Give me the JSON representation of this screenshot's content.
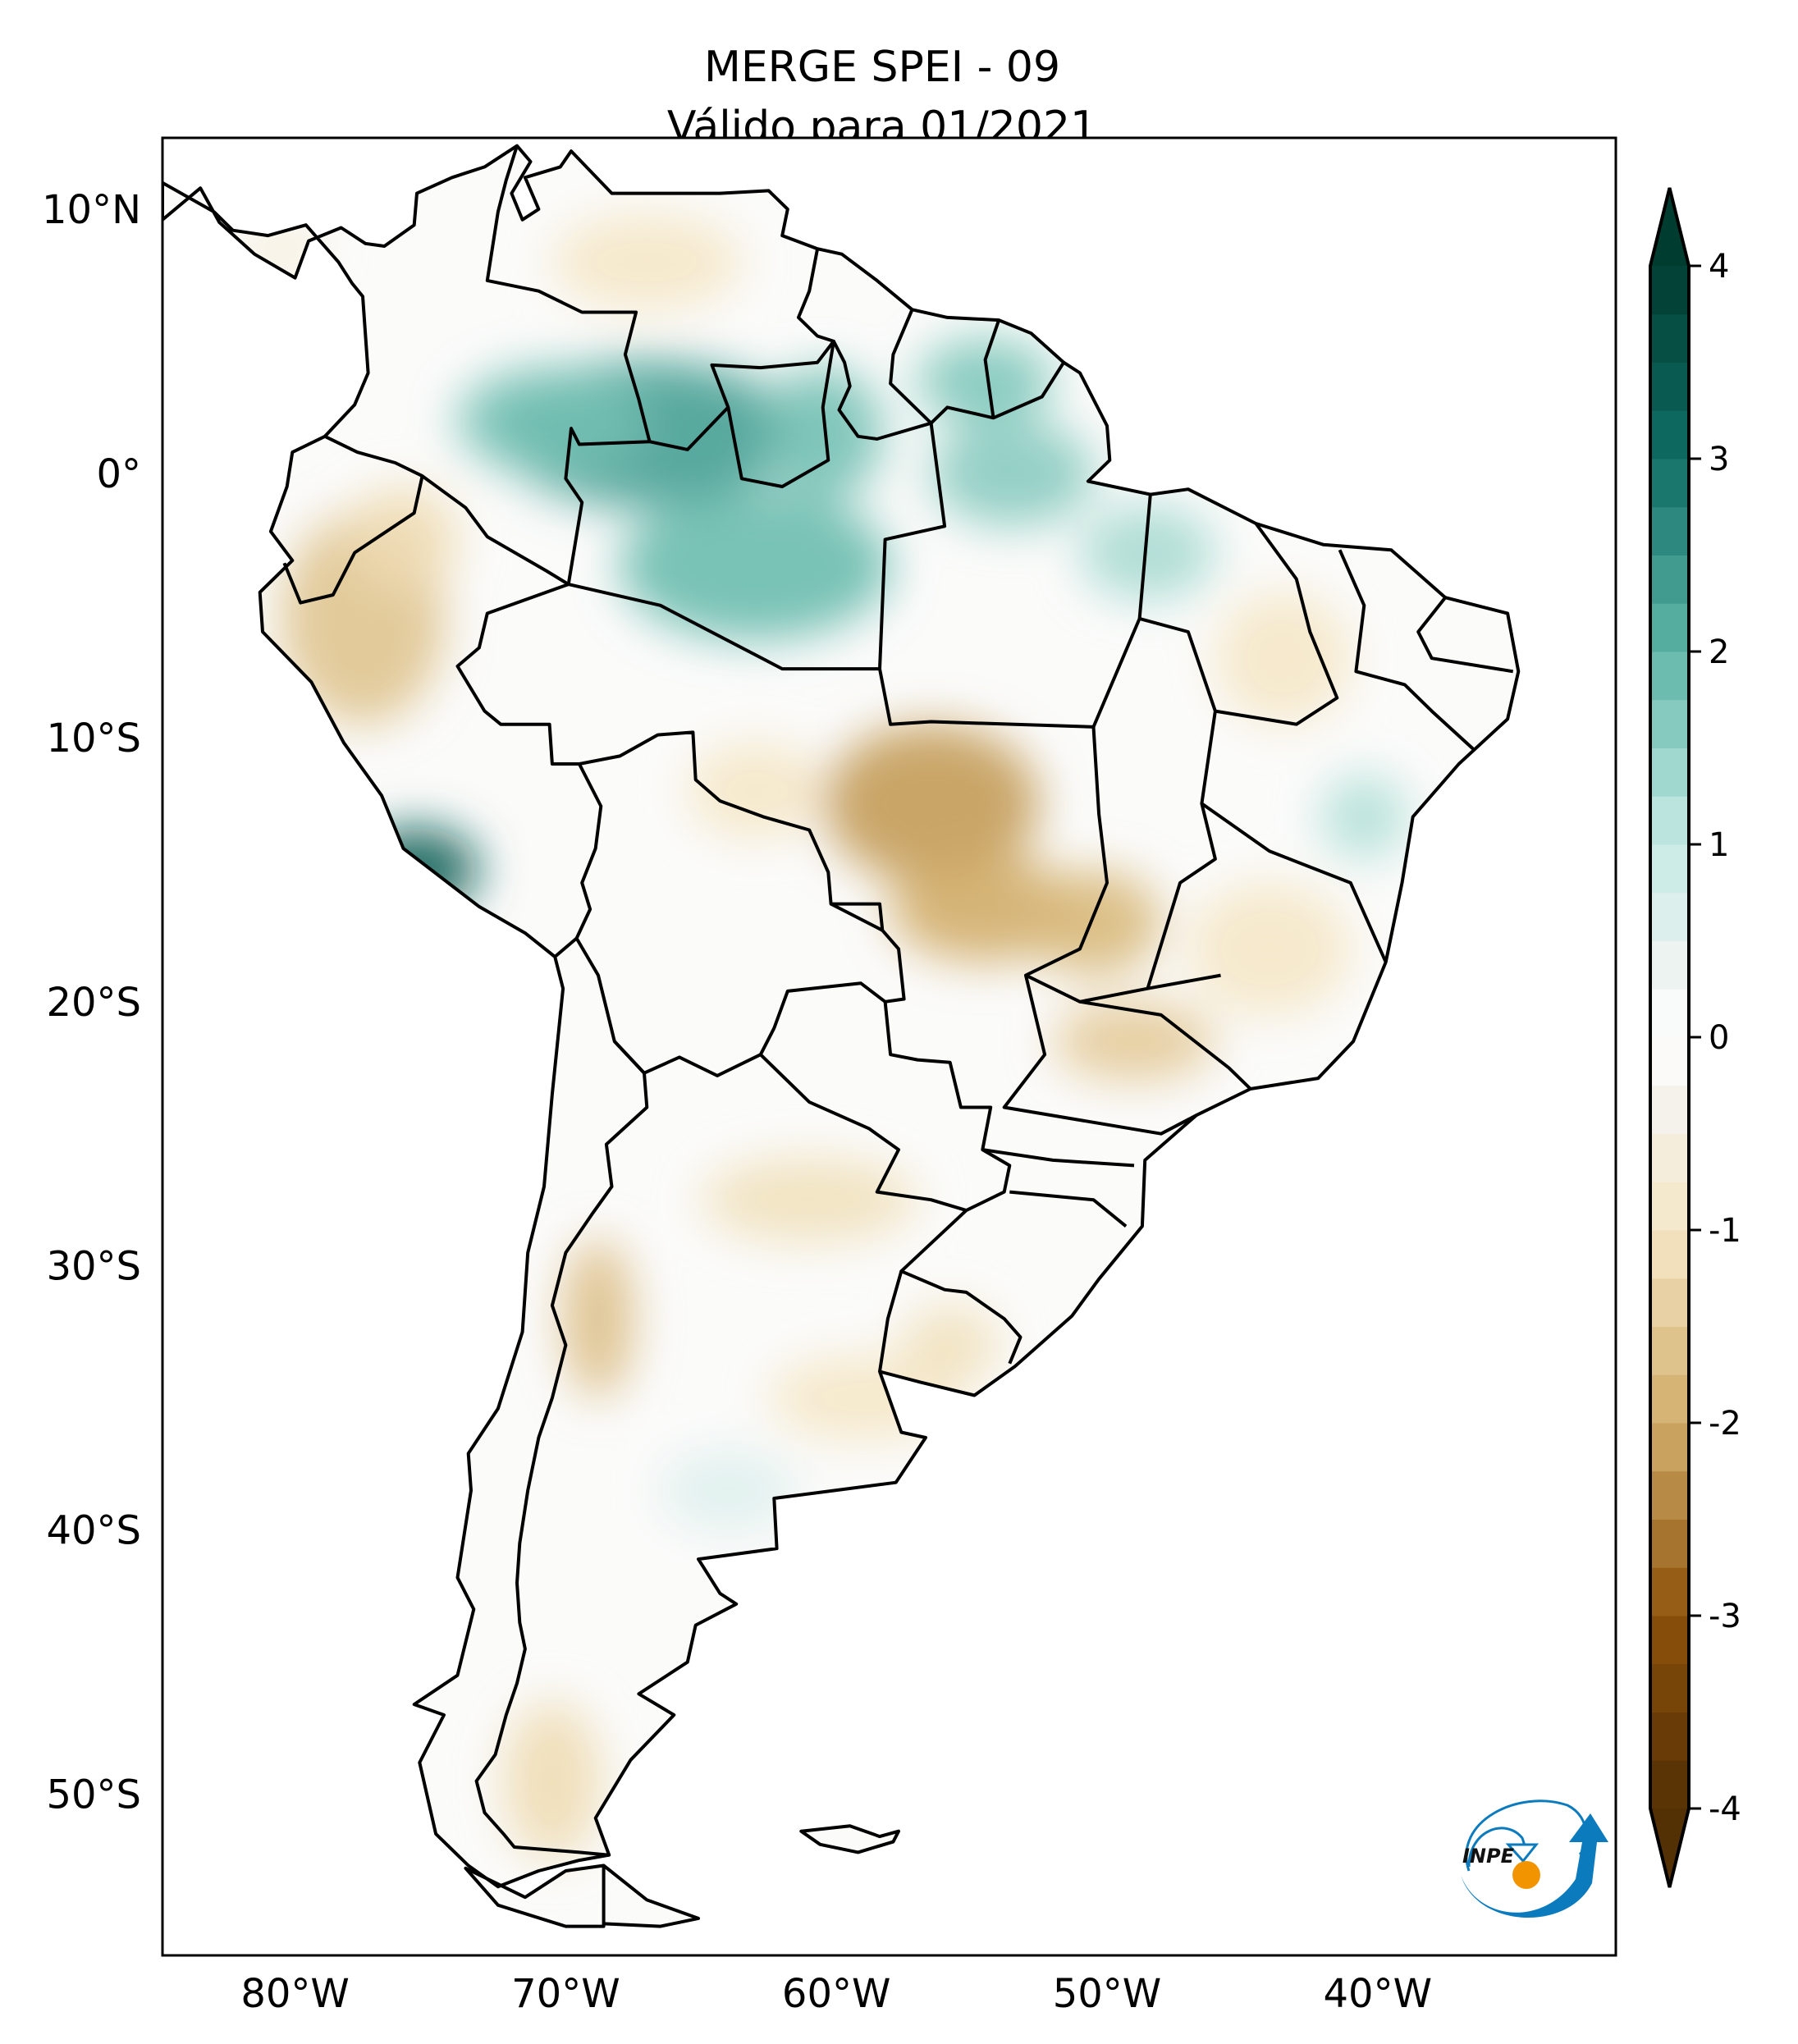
{
  "figure": {
    "title_line1": "MERGE   SPEI - 09",
    "title_line2": "Válido para 01/2021",
    "logo_text": "INPE",
    "logo_colors": {
      "blue": "#0b7bbd",
      "orange": "#f29400"
    }
  },
  "chart_data": {
    "type": "heatmap",
    "title": "MERGE   SPEI - 09",
    "subtitle": "Válido para 01/2021",
    "variable": "SPEI-09",
    "period": "01/2021",
    "map_extent": {
      "lon_min": -84.9,
      "lon_max": -31.2,
      "lat_min": -56.1,
      "lat_max": 12.7
    },
    "x_ticks": [
      {
        "value": -80,
        "label": "80°W"
      },
      {
        "value": -70,
        "label": "70°W"
      },
      {
        "value": -60,
        "label": "60°W"
      },
      {
        "value": -50,
        "label": "50°W"
      },
      {
        "value": -40,
        "label": "40°W"
      }
    ],
    "y_ticks": [
      {
        "value": 10,
        "label": "10°N"
      },
      {
        "value": 0,
        "label": "0°"
      },
      {
        "value": -10,
        "label": "10°S"
      },
      {
        "value": -20,
        "label": "20°S"
      },
      {
        "value": -30,
        "label": "30°S"
      },
      {
        "value": -40,
        "label": "40°S"
      },
      {
        "value": -50,
        "label": "50°S"
      }
    ],
    "colorbar": {
      "min": -4,
      "max": 4,
      "extend": "both",
      "cmap": "BrBG",
      "ticks": [
        {
          "value": 4,
          "label": "4"
        },
        {
          "value": 3,
          "label": "3"
        },
        {
          "value": 2,
          "label": "2"
        },
        {
          "value": 1,
          "label": "1"
        },
        {
          "value": 0,
          "label": "0"
        },
        {
          "value": -1,
          "label": "-1"
        },
        {
          "value": -2,
          "label": "-2"
        },
        {
          "value": -3,
          "label": "-3"
        },
        {
          "value": -4,
          "label": "-4"
        }
      ],
      "stops": [
        {
          "value": -4,
          "color": "#543005"
        },
        {
          "value": -3,
          "color": "#8c510a"
        },
        {
          "value": -2,
          "color": "#d1ad6a"
        },
        {
          "value": -1,
          "color": "#f5e7c6"
        },
        {
          "value": -0.3,
          "color": "#f5f3ef"
        },
        {
          "value": 0,
          "color": "#ffffff"
        },
        {
          "value": 0.3,
          "color": "#f0f4f3"
        },
        {
          "value": 1,
          "color": "#c7eae4"
        },
        {
          "value": 2,
          "color": "#5fb6a8"
        },
        {
          "value": 3,
          "color": "#0f6e66"
        },
        {
          "value": 4,
          "color": "#003c30"
        }
      ]
    },
    "anomaly_regions": [
      {
        "name": "northwest-amazon-wet",
        "lon": -67,
        "lat": 1.5,
        "rx": 5.5,
        "ry": 2.8,
        "value": 2.3
      },
      {
        "name": "colombia-llanos-wet",
        "lon": -70.5,
        "lat": 2.0,
        "rx": 3.5,
        "ry": 2.0,
        "value": 1.8
      },
      {
        "name": "central-amazon-wet",
        "lon": -63,
        "lat": -3.5,
        "rx": 5.0,
        "ry": 2.8,
        "value": 1.9
      },
      {
        "name": "roraima-wet",
        "lon": -60.5,
        "lat": 1.5,
        "rx": 2.2,
        "ry": 2.5,
        "value": 1.8
      },
      {
        "name": "guianas-wet",
        "lon": -54.5,
        "lat": 3.5,
        "rx": 2.5,
        "ry": 1.6,
        "value": 1.7
      },
      {
        "name": "amapa-para-wet",
        "lon": -53.5,
        "lat": 0.0,
        "rx": 3.0,
        "ry": 2.0,
        "value": 1.6
      },
      {
        "name": "para-east-wet",
        "lon": -48.5,
        "lat": -3.0,
        "rx": 2.5,
        "ry": 1.8,
        "value": 1.3
      },
      {
        "name": "peru-coast-wet",
        "lon": -75.5,
        "lat": -15.0,
        "rx": 2.3,
        "ry": 1.6,
        "value": 3.3
      },
      {
        "name": "bahia-wet",
        "lon": -40.5,
        "lat": -13.0,
        "rx": 1.6,
        "ry": 1.6,
        "value": 1.2
      },
      {
        "name": "venezuela-north-dry",
        "lon": -67,
        "lat": 8.0,
        "rx": 3.5,
        "ry": 1.8,
        "value": -1.0
      },
      {
        "name": "peru-north-dry",
        "lon": -77.5,
        "lat": -5.5,
        "rx": 3.0,
        "ry": 4.0,
        "value": -1.6
      },
      {
        "name": "ecuador-peru-dry",
        "lon": -76.0,
        "lat": -2.5,
        "rx": 2.0,
        "ry": 2.0,
        "value": -1.2
      },
      {
        "name": "mato-grosso-dry",
        "lon": -56.5,
        "lat": -12.5,
        "rx": 4.0,
        "ry": 3.0,
        "value": -2.2
      },
      {
        "name": "mato-grosso-south-dry",
        "lon": -54.5,
        "lat": -16.5,
        "rx": 3.5,
        "ry": 2.0,
        "value": -2.0
      },
      {
        "name": "goias-dry",
        "lon": -50.5,
        "lat": -17.0,
        "rx": 2.5,
        "ry": 2.0,
        "value": -1.8
      },
      {
        "name": "sao-paulo-dry",
        "lon": -49.0,
        "lat": -21.5,
        "rx": 3.0,
        "ry": 1.5,
        "value": -1.5
      },
      {
        "name": "minas-dry",
        "lon": -44.0,
        "lat": -18.0,
        "rx": 3.0,
        "ry": 2.5,
        "value": -1.0
      },
      {
        "name": "piaui-dry",
        "lon": -43.5,
        "lat": -7.0,
        "rx": 2.5,
        "ry": 2.5,
        "value": -1.0
      },
      {
        "name": "rondonia-dry",
        "lon": -63.0,
        "lat": -12.0,
        "rx": 2.5,
        "ry": 1.8,
        "value": -1.0
      },
      {
        "name": "argentina-andes-dry",
        "lon": -68.8,
        "lat": -32.0,
        "rx": 1.3,
        "ry": 3.0,
        "value": -1.7
      },
      {
        "name": "chaco-dry",
        "lon": -61.0,
        "lat": -27.5,
        "rx": 4.0,
        "ry": 1.6,
        "value": -1.1
      },
      {
        "name": "pampas-dry",
        "lon": -59.0,
        "lat": -35.0,
        "rx": 3.5,
        "ry": 1.6,
        "value": -1.0
      },
      {
        "name": "uruguay-dry",
        "lon": -55.8,
        "lat": -33.0,
        "rx": 1.8,
        "ry": 1.5,
        "value": -1.1
      },
      {
        "name": "patagonia-south-dry",
        "lon": -70.5,
        "lat": -49.5,
        "rx": 1.8,
        "ry": 3.0,
        "value": -1.2
      },
      {
        "name": "panama-dry",
        "lon": -80.5,
        "lat": 8.5,
        "rx": 1.5,
        "ry": 0.6,
        "value": -0.9
      },
      {
        "name": "central-argentina-wet",
        "lon": -64.0,
        "lat": -38.5,
        "rx": 2.5,
        "ry": 1.5,
        "value": 0.6
      }
    ]
  }
}
